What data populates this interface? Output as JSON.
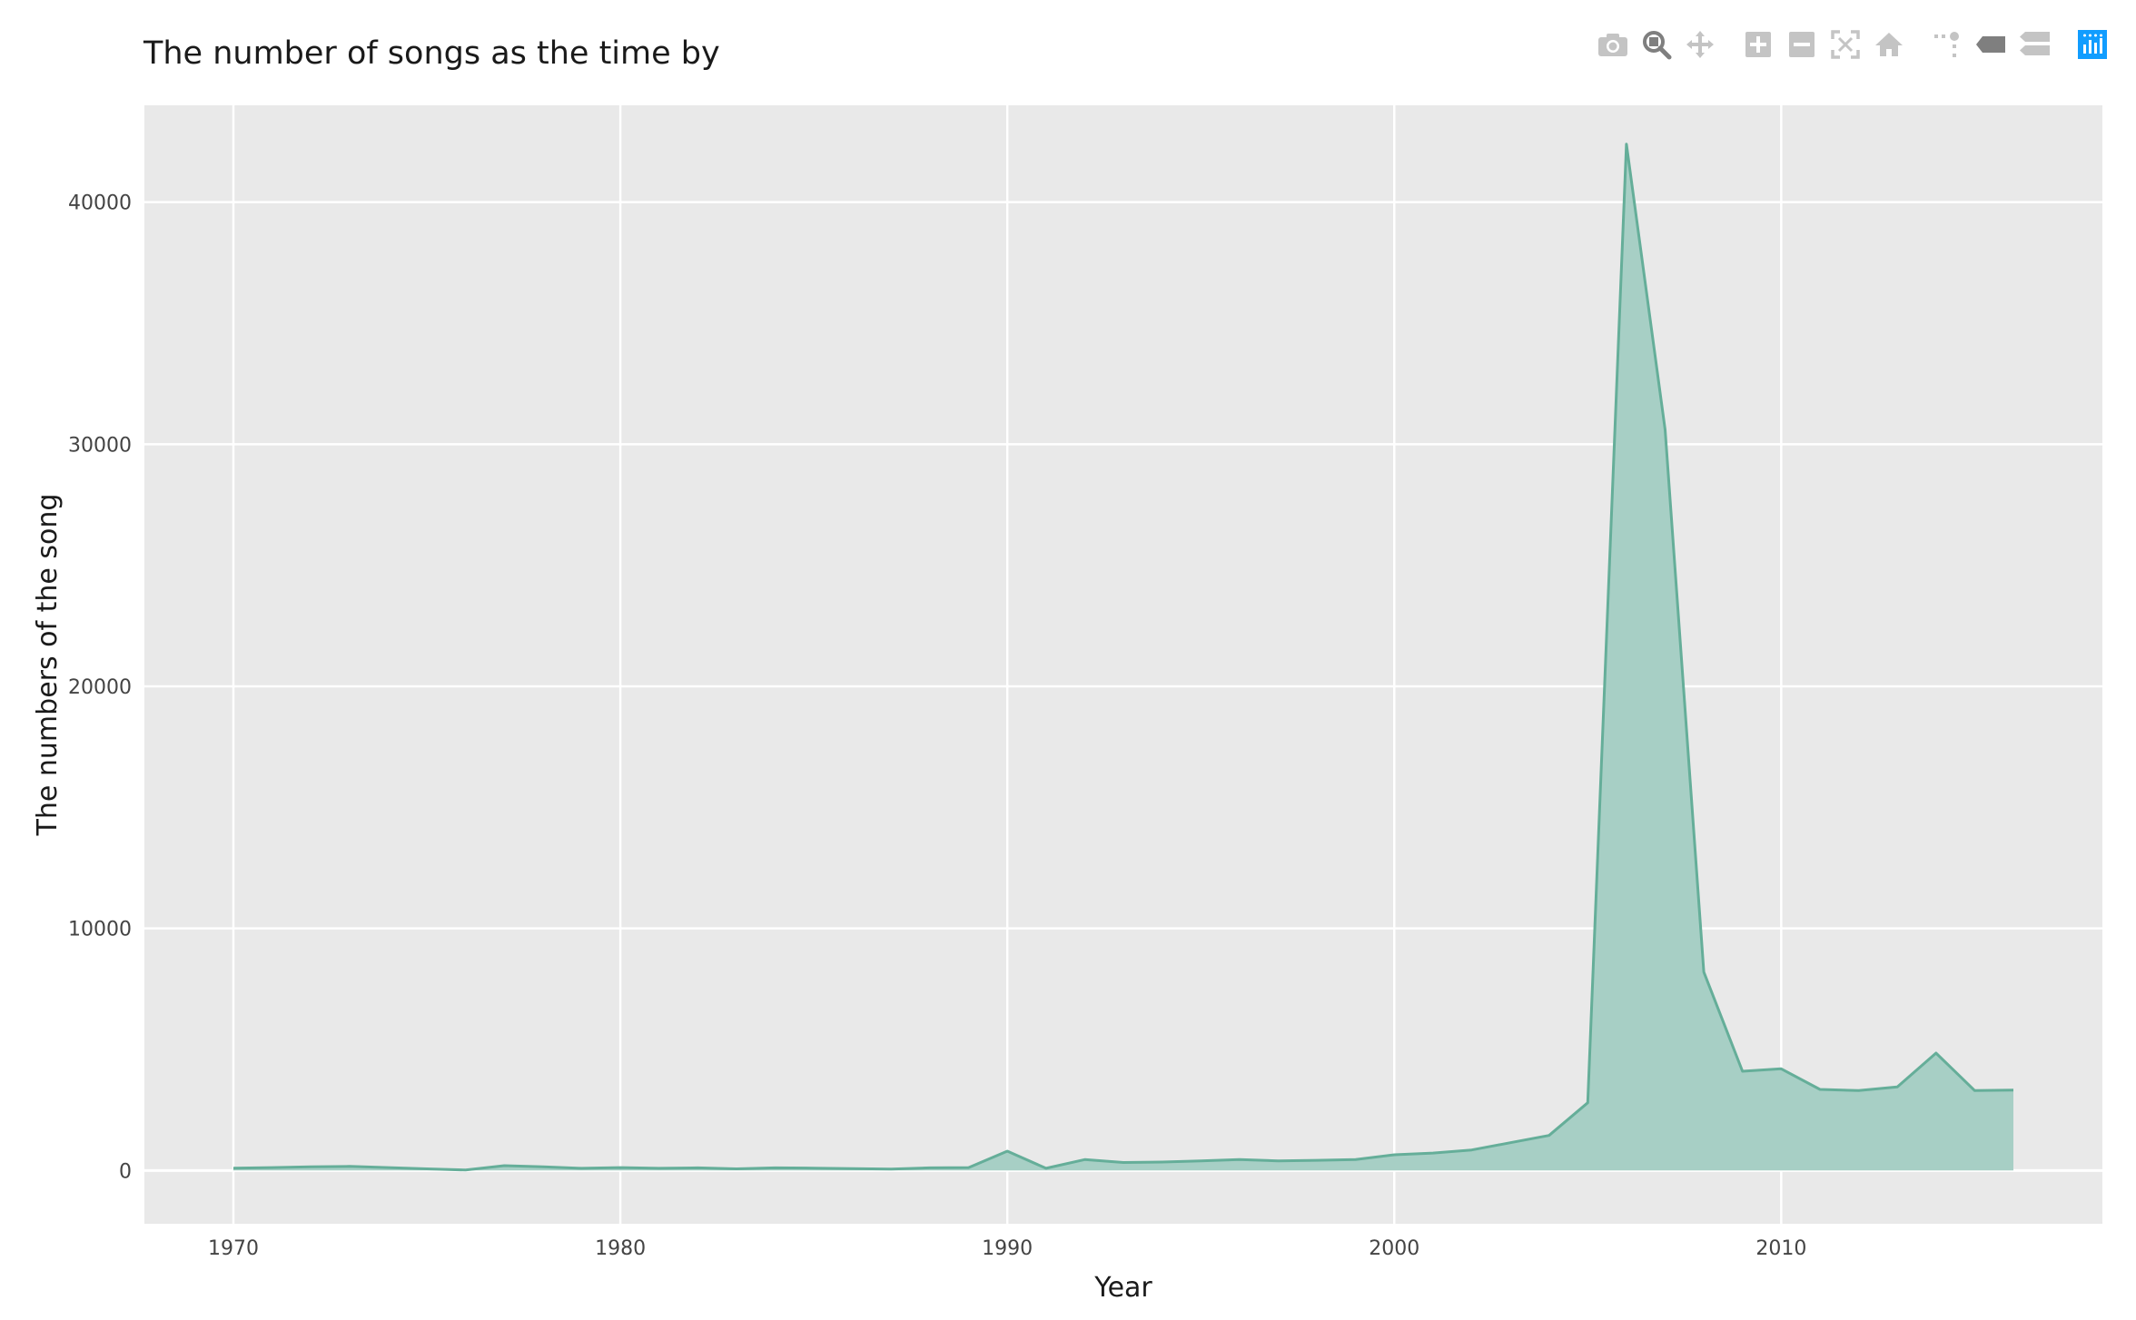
{
  "modebar": {
    "buttons": [
      {
        "icon": "camera-icon",
        "name": "download-plot-button"
      },
      {
        "icon": "zoom-icon",
        "name": "zoom-button"
      },
      {
        "icon": "pan-icon",
        "name": "pan-button"
      },
      {
        "icon": "zoom-in-icon",
        "name": "zoom-in-button"
      },
      {
        "icon": "zoom-out-icon",
        "name": "zoom-out-button"
      },
      {
        "icon": "autoscale-icon",
        "name": "autoscale-button"
      },
      {
        "icon": "home-icon",
        "name": "reset-axes-button"
      },
      {
        "icon": "spike-lines-icon",
        "name": "spike-lines-button"
      },
      {
        "icon": "hover-closest-icon",
        "name": "hover-closest-button"
      },
      {
        "icon": "hover-compare-icon",
        "name": "hover-compare-button"
      },
      {
        "icon": "plotly-logo-icon",
        "name": "plotly-logo-link"
      }
    ],
    "colors": {
      "icon": "#c4c4c4",
      "active": "#7f7f7f",
      "logo": "#119dff"
    }
  },
  "chart_data": {
    "type": "area",
    "title": "The number of songs as the time by",
    "xlabel": "Year",
    "ylabel": "The numbers of the song",
    "xlim": [
      1967.7,
      2018.3
    ],
    "ylim": [
      -2200,
      44000
    ],
    "xticks": [
      1970,
      1980,
      1990,
      2000,
      2010
    ],
    "yticks": [
      0,
      10000,
      20000,
      30000,
      40000
    ],
    "x": [
      1970,
      1971,
      1972,
      1973,
      1974,
      1975,
      1976,
      1977,
      1978,
      1979,
      1980,
      1981,
      1982,
      1983,
      1984,
      1985,
      1986,
      1987,
      1988,
      1989,
      1990,
      1991,
      1992,
      1993,
      1994,
      1995,
      1996,
      1997,
      1998,
      1999,
      2000,
      2001,
      2002,
      2003,
      2004,
      2005,
      2006,
      2007,
      2008,
      2009,
      2010,
      2011,
      2012,
      2013,
      2014,
      2015,
      2016
    ],
    "y": [
      100,
      120,
      150,
      170,
      120,
      70,
      20,
      200,
      150,
      90,
      120,
      90,
      110,
      70,
      110,
      100,
      80,
      60,
      110,
      120,
      800,
      90,
      450,
      330,
      350,
      400,
      450,
      400,
      420,
      450,
      650,
      720,
      850,
      1150,
      1450,
      2800,
      42400,
      30600,
      8200,
      4100,
      4200,
      3350,
      3300,
      3450,
      4850,
      3300,
      3320
    ],
    "grid": true,
    "colors": {
      "line": "#65ae99",
      "fill": "#a7cfc5",
      "plot_bg": "#e9e9e9",
      "grid": "#ffffff"
    }
  }
}
